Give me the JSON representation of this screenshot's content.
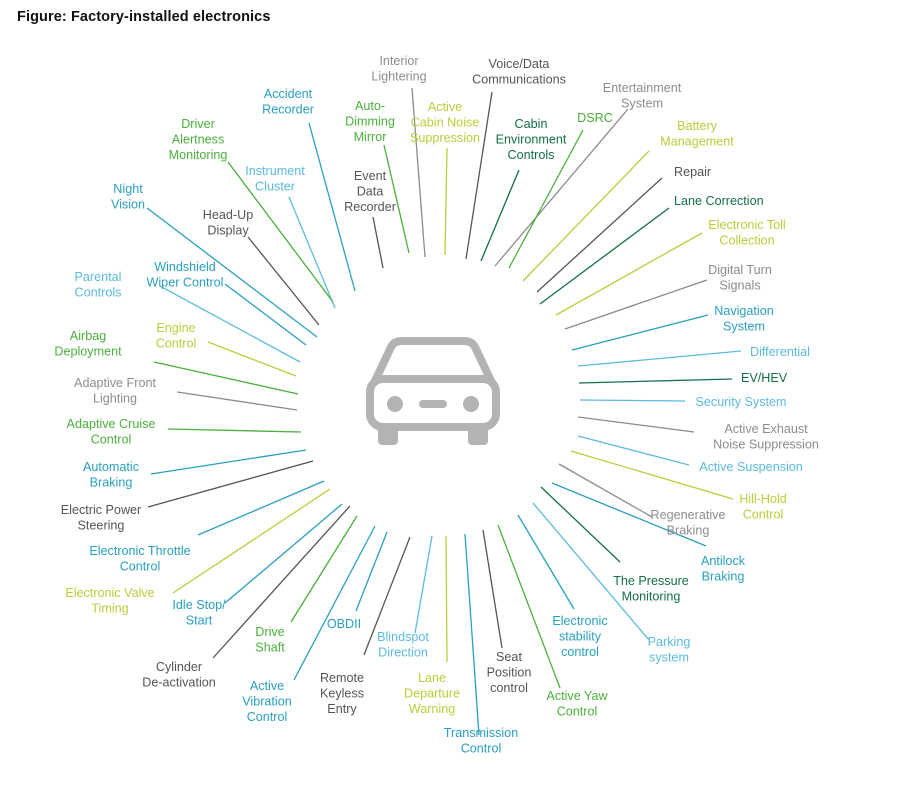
{
  "title": "Figure: Factory-installed electronics",
  "center_icon": "car-icon",
  "colors": {
    "gray": "#8c8c8c",
    "teal": "#2a9fc0",
    "lightblue": "#5cbbe0",
    "green": "#4bb03c",
    "lime": "#b7cf3a",
    "darkgreen": "#137044",
    "darkgray": "#555555",
    "icon": "#b3b3b3"
  },
  "items": [
    {
      "label": "Interior\nLightering",
      "color": "gray"
    },
    {
      "label": "Voice/Data\nCommunications",
      "color": "darkgray"
    },
    {
      "label": "Active\nCabin Noise\nSuppression",
      "color": "lime"
    },
    {
      "label": "Cabin\nEnvironment\nControls",
      "color": "darkgreen"
    },
    {
      "label": "Entertainment\nSystem",
      "color": "gray"
    },
    {
      "label": "DSRC",
      "color": "green"
    },
    {
      "label": "Battery\nManagement",
      "color": "lime"
    },
    {
      "label": "Repair",
      "color": "darkgray"
    },
    {
      "label": "Lane Correction",
      "color": "darkgreen"
    },
    {
      "label": "Electronic Toll\nCollection",
      "color": "lime"
    },
    {
      "label": "Digital Turn\nSignals",
      "color": "gray"
    },
    {
      "label": "Navigation\nSystem",
      "color": "teal"
    },
    {
      "label": "Differential",
      "color": "lightblue"
    },
    {
      "label": "EV/HEV",
      "color": "darkgreen"
    },
    {
      "label": "Security System",
      "color": "lightblue"
    },
    {
      "label": "Active Exhaust\nNoise Suppression",
      "color": "gray"
    },
    {
      "label": "Active Suspension",
      "color": "lightblue"
    },
    {
      "label": "Hill-Hold\nControl",
      "color": "lime"
    },
    {
      "label": "Regenerative\nBraking",
      "color": "gray"
    },
    {
      "label": "Antilock\nBraking",
      "color": "teal"
    },
    {
      "label": "The Pressure\nMonitoring",
      "color": "darkgreen"
    },
    {
      "label": "Parking\nsystem",
      "color": "lightblue"
    },
    {
      "label": "Electronic\nstability\ncontrol",
      "color": "teal"
    },
    {
      "label": "Active Yaw\nControl",
      "color": "green"
    },
    {
      "label": "Seat\nPosition\ncontrol",
      "color": "darkgray"
    },
    {
      "label": "Transmission\nControl",
      "color": "teal"
    },
    {
      "label": "Lane\nDeparture\nWarning",
      "color": "lime"
    },
    {
      "label": "Blindspot\nDirection",
      "color": "lightblue"
    },
    {
      "label": "Remote\nKeyless\nEntry",
      "color": "darkgray"
    },
    {
      "label": "OBDII",
      "color": "teal"
    },
    {
      "label": "Active\nVibration\nControl",
      "color": "teal"
    },
    {
      "label": "Drive\nShaft",
      "color": "green"
    },
    {
      "label": "Cylinder\nDe-activation",
      "color": "darkgray"
    },
    {
      "label": "Idle Stop/\nStart",
      "color": "teal"
    },
    {
      "label": "Electronic Valve\nTiming",
      "color": "lime"
    },
    {
      "label": "Electronic Throttle\nControl",
      "color": "teal"
    },
    {
      "label": "Electric Power\nSteering",
      "color": "darkgray"
    },
    {
      "label": "Automatic\nBraking",
      "color": "teal"
    },
    {
      "label": "Adaptive Cruise\nControl",
      "color": "green"
    },
    {
      "label": "Adaptive Front\nLighting",
      "color": "gray"
    },
    {
      "label": "Airbag\nDeployment",
      "color": "green"
    },
    {
      "label": "Engine\nControl",
      "color": "lime"
    },
    {
      "label": "Parental\nControls",
      "color": "lightblue"
    },
    {
      "label": "Windshield\nWiper Control",
      "color": "teal"
    },
    {
      "label": "Night\nVision",
      "color": "teal"
    },
    {
      "label": "Head-Up\nDisplay",
      "color": "darkgray"
    },
    {
      "label": "Instrument\nCluster",
      "color": "lightblue"
    },
    {
      "label": "Driver\nAlertness\nMonitoring",
      "color": "green"
    },
    {
      "label": "Accident\nRecorder",
      "color": "teal"
    },
    {
      "label": "Event\nData\nRecorder",
      "color": "darkgray"
    },
    {
      "label": "Auto-\nDimming\nMirror",
      "color": "green"
    }
  ]
}
